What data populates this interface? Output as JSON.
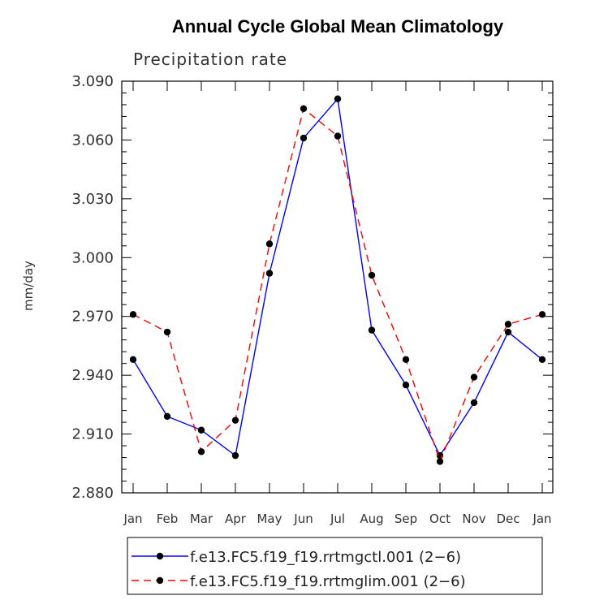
{
  "chart_data": {
    "type": "line",
    "title": "Annual Cycle Global Mean Climatology",
    "subtitle": "Precipitation rate",
    "xlabel": "",
    "ylabel": "mm/day",
    "categories": [
      "Jan",
      "Feb",
      "Mar",
      "Apr",
      "May",
      "Jun",
      "Jul",
      "Aug",
      "Sep",
      "Oct",
      "Nov",
      "Dec",
      "Jan"
    ],
    "ylim": [
      2.88,
      3.09
    ],
    "yticks": [
      "2.880",
      "2.910",
      "2.940",
      "2.970",
      "3.000",
      "3.030",
      "3.060",
      "3.090"
    ],
    "series": [
      {
        "name": "f.e13.FC5.f19_f19.rrtmgctl.001 (2−6)",
        "color": "#0000ff",
        "dash": "solid",
        "values": [
          2.948,
          2.919,
          2.912,
          2.899,
          2.992,
          3.061,
          3.081,
          2.963,
          2.935,
          2.899,
          2.926,
          2.962,
          2.948
        ]
      },
      {
        "name": "f.e13.FC5.f19_f19.rrtmglim.001 (2−6)",
        "color": "#ff0000",
        "dash": "dashed",
        "values": [
          2.971,
          2.962,
          2.901,
          2.917,
          3.007,
          3.076,
          3.062,
          2.991,
          2.948,
          2.896,
          2.939,
          2.966,
          2.971
        ]
      }
    ],
    "legend": "bottom"
  }
}
